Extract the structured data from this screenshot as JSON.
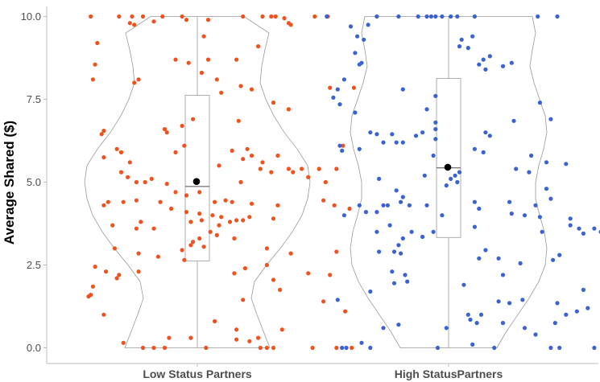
{
  "chart_data": {
    "type": "violin",
    "title": "",
    "ylabel": "Average Shared ($)",
    "xlabel": "",
    "ylim": [
      -0.3,
      10.2
    ],
    "yticks": [
      "0.0",
      "2.5",
      "5.0",
      "7.5",
      "10.0"
    ],
    "grid": false,
    "legend": "none",
    "categories": [
      "Low Status Partners",
      "High StatusPartners"
    ],
    "groups": [
      {
        "category": "Low Status Partners",
        "color": "#f0521e",
        "box": {
          "q1": 2.62,
          "median": 4.87,
          "q3": 7.62,
          "min": 0.0,
          "max": 10.0
        },
        "mean": 5.02,
        "points": [
          [
            -0.98,
            10.0
          ],
          [
            -0.72,
            10.0
          ],
          [
            -0.6,
            10.0
          ],
          [
            -0.5,
            10.0
          ],
          [
            -0.32,
            10.0
          ],
          [
            -0.14,
            10.0
          ],
          [
            0.42,
            10.0
          ],
          [
            0.6,
            10.0
          ],
          [
            0.68,
            10.0
          ],
          [
            0.72,
            10.0
          ],
          [
            0.8,
            9.95
          ],
          [
            1.08,
            10.0
          ],
          [
            1.2,
            10.0
          ],
          [
            -0.62,
            9.8
          ],
          [
            -0.58,
            9.75
          ],
          [
            -0.4,
            9.85
          ],
          [
            -0.1,
            9.9
          ],
          [
            0.1,
            9.9
          ],
          [
            0.84,
            9.8
          ],
          [
            0.86,
            9.75
          ],
          [
            -0.92,
            9.2
          ],
          [
            0.06,
            9.4
          ],
          [
            0.56,
            9.1
          ],
          [
            -0.94,
            8.55
          ],
          [
            -0.2,
            8.7
          ],
          [
            -0.08,
            8.6
          ],
          [
            0.1,
            8.7
          ],
          [
            0.36,
            8.7
          ],
          [
            -0.96,
            8.1
          ],
          [
            -0.54,
            8.1
          ],
          [
            -0.58,
            8.0
          ],
          [
            0.04,
            8.3
          ],
          [
            0.18,
            8.1
          ],
          [
            0.4,
            7.9
          ],
          [
            0.5,
            7.8
          ],
          [
            1.22,
            7.85
          ],
          [
            1.44,
            7.85
          ],
          [
            0.22,
            7.7
          ],
          [
            0.7,
            7.4
          ],
          [
            0.84,
            7.2
          ],
          [
            -0.28,
            6.5
          ],
          [
            -0.14,
            6.7
          ],
          [
            -0.04,
            6.9
          ],
          [
            -0.3,
            6.6
          ],
          [
            0.38,
            6.85
          ],
          [
            -0.86,
            6.55
          ],
          [
            -0.88,
            6.45
          ],
          [
            -0.12,
            6.1
          ],
          [
            -0.2,
            5.9
          ],
          [
            0.46,
            6.0
          ],
          [
            1.34,
            6.1
          ],
          [
            -0.74,
            6.0
          ],
          [
            -0.7,
            5.9
          ],
          [
            -0.62,
            5.6
          ],
          [
            -0.86,
            5.75
          ],
          [
            0.32,
            5.95
          ],
          [
            0.5,
            5.8
          ],
          [
            0.74,
            5.8
          ],
          [
            0.42,
            5.7
          ],
          [
            0.6,
            5.6
          ],
          [
            0.2,
            5.5
          ],
          [
            0.58,
            5.4
          ],
          [
            0.84,
            5.4
          ],
          [
            0.96,
            5.4
          ],
          [
            1.12,
            5.4
          ],
          [
            1.28,
            5.4
          ],
          [
            0.68,
            5.3
          ],
          [
            0.88,
            5.3
          ],
          [
            1.02,
            5.15
          ],
          [
            -0.7,
            5.3
          ],
          [
            -0.64,
            5.15
          ],
          [
            -0.42,
            5.1
          ],
          [
            -0.48,
            5.0
          ],
          [
            -0.56,
            5.0
          ],
          [
            -0.28,
            4.95
          ],
          [
            0.4,
            5.0
          ],
          [
            1.18,
            5.0
          ],
          [
            -0.2,
            4.7
          ],
          [
            -0.1,
            4.6
          ],
          [
            0.02,
            4.7
          ],
          [
            0.26,
            4.45
          ],
          [
            -0.82,
            4.4
          ],
          [
            -0.86,
            4.3
          ],
          [
            -0.68,
            4.4
          ],
          [
            -0.56,
            4.45
          ],
          [
            -0.34,
            4.4
          ],
          [
            0.16,
            4.4
          ],
          [
            0.32,
            4.4
          ],
          [
            0.5,
            4.35
          ],
          [
            0.74,
            4.3
          ],
          [
            1.16,
            4.45
          ],
          [
            1.26,
            4.3
          ],
          [
            1.4,
            4.2
          ],
          [
            -0.24,
            4.2
          ],
          [
            -0.1,
            4.1
          ],
          [
            0.02,
            4.05
          ],
          [
            0.14,
            4.0
          ],
          [
            0.22,
            3.95
          ],
          [
            0.04,
            3.85
          ],
          [
            -0.06,
            3.8
          ],
          [
            0.2,
            3.7
          ],
          [
            0.3,
            3.8
          ],
          [
            0.36,
            3.85
          ],
          [
            0.42,
            3.85
          ],
          [
            0.48,
            3.95
          ],
          [
            0.7,
            3.9
          ],
          [
            -0.52,
            3.8
          ],
          [
            -0.78,
            3.7
          ],
          [
            -0.56,
            3.6
          ],
          [
            -0.4,
            3.6
          ],
          [
            0.12,
            3.5
          ],
          [
            0.18,
            3.4
          ],
          [
            0.02,
            3.3
          ],
          [
            -0.04,
            3.2
          ],
          [
            -0.06,
            3.1
          ],
          [
            0.06,
            3.05
          ],
          [
            -0.14,
            2.95
          ],
          [
            -0.76,
            3.0
          ],
          [
            0.34,
            3.3
          ],
          [
            1.28,
            2.9
          ],
          [
            0.64,
            3.0
          ],
          [
            0.86,
            2.85
          ],
          [
            -0.54,
            2.85
          ],
          [
            -0.36,
            2.75
          ],
          [
            -0.12,
            2.65
          ],
          [
            -0.94,
            2.45
          ],
          [
            0.44,
            2.4
          ],
          [
            -0.84,
            2.3
          ],
          [
            -0.54,
            2.3
          ],
          [
            -0.72,
            2.2
          ],
          [
            -0.74,
            2.1
          ],
          [
            0.34,
            2.25
          ],
          [
            0.64,
            2.5
          ],
          [
            0.7,
            2.05
          ],
          [
            1.02,
            2.25
          ],
          [
            1.22,
            2.2
          ],
          [
            -0.96,
            1.85
          ],
          [
            -0.98,
            1.6
          ],
          [
            -1.0,
            1.55
          ],
          [
            -0.86,
            1.0
          ],
          [
            0.16,
            0.8
          ],
          [
            0.42,
            1.45
          ],
          [
            0.76,
            1.75
          ],
          [
            1.16,
            1.4
          ],
          [
            1.36,
            1.1
          ],
          [
            0.56,
            0.3
          ],
          [
            0.36,
            0.25
          ],
          [
            0.48,
            0.2
          ],
          [
            -0.26,
            0.3
          ],
          [
            -0.06,
            0.3
          ],
          [
            -0.5,
            0.0
          ],
          [
            -0.4,
            0.0
          ],
          [
            -0.3,
            0.0
          ],
          [
            0.58,
            0.0
          ],
          [
            0.64,
            0.0
          ],
          [
            0.7,
            0.0
          ],
          [
            1.06,
            0.0
          ],
          [
            1.28,
            0.0
          ],
          [
            0.08,
            0.0
          ],
          [
            0.36,
            0.55
          ],
          [
            0.78,
            0.55
          ],
          [
            -0.68,
            0.15
          ],
          [
            1.42,
            0.0
          ]
        ]
      },
      {
        "category": "High StatusPartners",
        "color": "#3a62d0",
        "box": {
          "q1": 3.33,
          "median": 5.43,
          "q3": 8.13,
          "min": 0.0,
          "max": 10.0
        },
        "mean": 5.45,
        "points": [
          [
            -1.12,
            10.0
          ],
          [
            -0.66,
            10.0
          ],
          [
            -0.46,
            10.0
          ],
          [
            -0.28,
            10.0
          ],
          [
            -0.2,
            10.0
          ],
          [
            -0.16,
            10.0
          ],
          [
            -0.12,
            10.0
          ],
          [
            -0.06,
            10.0
          ],
          [
            0.02,
            10.0
          ],
          [
            0.08,
            10.0
          ],
          [
            0.24,
            10.0
          ],
          [
            0.82,
            10.0
          ],
          [
            1.0,
            10.0
          ],
          [
            -0.9,
            9.7
          ],
          [
            -0.74,
            9.75
          ],
          [
            0.12,
            9.3
          ],
          [
            0.22,
            9.4
          ],
          [
            -0.84,
            9.4
          ],
          [
            -0.78,
            9.3
          ],
          [
            -0.86,
            8.9
          ],
          [
            -0.8,
            8.6
          ],
          [
            0.1,
            9.1
          ],
          [
            0.18,
            9.05
          ],
          [
            0.32,
            8.7
          ],
          [
            0.38,
            8.8
          ],
          [
            0.5,
            8.5
          ],
          [
            0.58,
            8.6
          ],
          [
            0.28,
            8.55
          ],
          [
            0.34,
            8.4
          ],
          [
            -0.82,
            8.55
          ],
          [
            -0.96,
            8.1
          ],
          [
            -1.02,
            7.8
          ],
          [
            -0.42,
            7.8
          ],
          [
            -1.06,
            7.55
          ],
          [
            -1.0,
            7.35
          ],
          [
            -0.12,
            7.6
          ],
          [
            0.84,
            7.4
          ],
          [
            0.94,
            6.9
          ],
          [
            0.6,
            6.85
          ],
          [
            -0.86,
            7.1
          ],
          [
            -0.2,
            7.2
          ],
          [
            -0.12,
            6.8
          ],
          [
            -0.24,
            6.5
          ],
          [
            -0.12,
            6.6
          ],
          [
            -0.72,
            6.5
          ],
          [
            -0.66,
            6.45
          ],
          [
            -0.52,
            6.45
          ],
          [
            -0.3,
            6.4
          ],
          [
            -0.12,
            6.3
          ],
          [
            0.34,
            6.5
          ],
          [
            0.38,
            6.4
          ],
          [
            -1.0,
            6.1
          ],
          [
            -0.82,
            6.0
          ],
          [
            -0.98,
            5.95
          ],
          [
            -0.6,
            6.2
          ],
          [
            -0.48,
            6.2
          ],
          [
            -0.42,
            6.2
          ],
          [
            -0.14,
            5.8
          ],
          [
            0.24,
            6.0
          ],
          [
            0.32,
            5.9
          ],
          [
            0.76,
            5.8
          ],
          [
            0.9,
            5.6
          ],
          [
            1.08,
            5.55
          ],
          [
            0.62,
            5.4
          ],
          [
            0.74,
            5.3
          ],
          [
            0.1,
            5.3
          ],
          [
            0.06,
            5.2
          ],
          [
            0.02,
            5.1
          ],
          [
            0.08,
            5.0
          ],
          [
            -0.02,
            4.9
          ],
          [
            -0.22,
            5.2
          ],
          [
            -0.64,
            5.1
          ],
          [
            -0.48,
            4.75
          ],
          [
            -0.42,
            4.55
          ],
          [
            -0.44,
            4.4
          ],
          [
            -0.6,
            4.3
          ],
          [
            -0.56,
            4.3
          ],
          [
            -0.66,
            4.1
          ],
          [
            -0.76,
            4.1
          ],
          [
            -0.82,
            4.3
          ],
          [
            -0.96,
            4.0
          ],
          [
            -0.36,
            4.3
          ],
          [
            -0.2,
            4.3
          ],
          [
            -0.06,
            4.0
          ],
          [
            0.24,
            4.4
          ],
          [
            0.28,
            4.2
          ],
          [
            0.56,
            4.4
          ],
          [
            0.8,
            4.3
          ],
          [
            0.9,
            4.8
          ],
          [
            0.94,
            4.5
          ],
          [
            0.58,
            4.05
          ],
          [
            0.7,
            4.0
          ],
          [
            0.84,
            3.95
          ],
          [
            1.12,
            3.9
          ],
          [
            1.2,
            3.6
          ],
          [
            1.24,
            3.45
          ],
          [
            1.34,
            3.6
          ],
          [
            1.4,
            3.5
          ],
          [
            1.12,
            3.7
          ],
          [
            0.86,
            3.5
          ],
          [
            -0.14,
            3.5
          ],
          [
            -0.24,
            3.35
          ],
          [
            -0.34,
            3.5
          ],
          [
            -0.42,
            3.3
          ],
          [
            -0.46,
            3.1
          ],
          [
            -0.5,
            2.9
          ],
          [
            -0.44,
            2.85
          ],
          [
            -0.64,
            2.9
          ],
          [
            -0.66,
            3.5
          ],
          [
            -0.54,
            3.7
          ],
          [
            0.24,
            3.65
          ],
          [
            0.34,
            2.95
          ],
          [
            0.28,
            2.7
          ],
          [
            0.46,
            2.7
          ],
          [
            0.66,
            2.55
          ],
          [
            0.96,
            2.65
          ],
          [
            1.02,
            2.8
          ],
          [
            0.5,
            2.2
          ],
          [
            -0.52,
            2.3
          ],
          [
            -0.38,
            2.0
          ],
          [
            -0.5,
            1.95
          ],
          [
            -0.72,
            1.7
          ],
          [
            -1.02,
            1.45
          ],
          [
            -0.4,
            2.2
          ],
          [
            0.14,
            1.9
          ],
          [
            0.46,
            1.4
          ],
          [
            0.56,
            1.35
          ],
          [
            0.68,
            1.45
          ],
          [
            1.0,
            1.35
          ],
          [
            1.24,
            1.75
          ],
          [
            1.18,
            1.1
          ],
          [
            1.28,
            1.2
          ],
          [
            1.08,
            1.0
          ],
          [
            0.18,
            1.0
          ],
          [
            0.3,
            1.0
          ],
          [
            0.2,
            0.85
          ],
          [
            0.26,
            0.75
          ],
          [
            -0.46,
            0.7
          ],
          [
            -0.6,
            0.6
          ],
          [
            -0.8,
            0.15
          ],
          [
            -0.02,
            0.6
          ],
          [
            0.5,
            0.75
          ],
          [
            0.7,
            0.6
          ],
          [
            0.98,
            0.75
          ],
          [
            0.8,
            0.4
          ],
          [
            -0.98,
            0.0
          ],
          [
            -0.94,
            0.0
          ],
          [
            -0.72,
            0.0
          ],
          [
            -0.1,
            0.0
          ],
          [
            0.42,
            0.0
          ],
          [
            0.94,
            0.0
          ],
          [
            1.02,
            0.0
          ],
          [
            1.34,
            0.0
          ],
          [
            0.22,
            0.1
          ]
        ]
      }
    ]
  }
}
